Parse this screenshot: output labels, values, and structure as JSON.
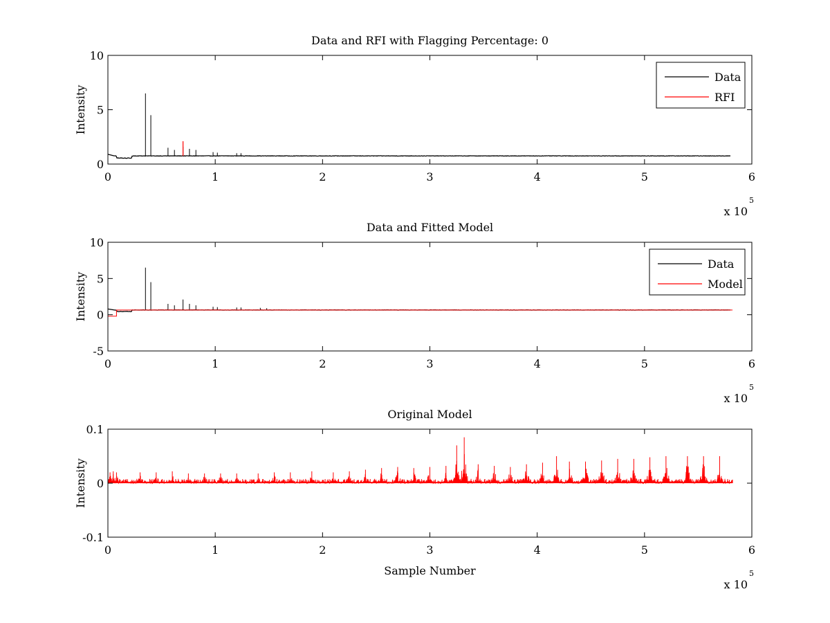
{
  "chart_data": [
    {
      "type": "line",
      "title": "Data and RFI with Flagging Percentage: 0",
      "xlabel": "",
      "ylabel": "Intensity",
      "xlim": [
        0,
        600000
      ],
      "ylim": [
        0,
        10
      ],
      "xticks": [
        0,
        100000,
        200000,
        300000,
        400000,
        500000,
        600000
      ],
      "xtick_labels": [
        "0",
        "1",
        "2",
        "3",
        "4",
        "5",
        "6"
      ],
      "yticks": [
        0,
        5,
        10
      ],
      "ytick_labels": [
        "0",
        "5",
        "10"
      ],
      "x_multiplier": {
        "base": "x 10",
        "exp": "5"
      },
      "grid": false,
      "legend": "top-right",
      "series": [
        {
          "name": "Data",
          "color": "#000000",
          "baseline": 0.75,
          "x": [
            0,
            5000,
            12000,
            20000,
            25000,
            35000,
            40000,
            56000,
            62000,
            70000,
            76000,
            82000,
            98000,
            102000,
            120000,
            124000,
            142000,
            148000,
            580000
          ],
          "y": [
            0.9,
            0.75,
            0.55,
            0.6,
            0.75,
            6.5,
            4.5,
            1.5,
            1.3,
            1.6,
            1.4,
            1.3,
            1.1,
            1.05,
            1.0,
            1.0,
            0.95,
            0.9,
            0.7
          ]
        },
        {
          "name": "RFI",
          "color": "#ff0000",
          "x": [
            70000
          ],
          "y": [
            2.1
          ]
        }
      ]
    },
    {
      "type": "line",
      "title": "Data and Fitted Model",
      "xlabel": "",
      "ylabel": "Intensity",
      "xlim": [
        0,
        600000
      ],
      "ylim": [
        -5,
        10
      ],
      "xticks": [
        0,
        100000,
        200000,
        300000,
        400000,
        500000,
        600000
      ],
      "xtick_labels": [
        "0",
        "1",
        "2",
        "3",
        "4",
        "5",
        "6"
      ],
      "yticks": [
        -5,
        0,
        5,
        10
      ],
      "ytick_labels": [
        "-5",
        "0",
        "5",
        "10"
      ],
      "x_multiplier": {
        "base": "x 10",
        "exp": "5"
      },
      "grid": false,
      "legend": "top-right",
      "series": [
        {
          "name": "Data",
          "color": "#000000",
          "baseline": 0.65,
          "x": [
            0,
            5000,
            20000,
            35000,
            40000,
            56000,
            62000,
            70000,
            76000,
            82000,
            98000,
            102000,
            120000,
            124000,
            142000,
            148000,
            580000
          ],
          "y": [
            0.8,
            0.65,
            0.3,
            6.5,
            4.5,
            1.5,
            1.3,
            2.1,
            1.5,
            1.3,
            1.1,
            1.05,
            1.0,
            1.0,
            0.95,
            0.9,
            0.5
          ]
        },
        {
          "name": "Model",
          "color": "#ff0000",
          "level": 0.65,
          "dip": {
            "x_start": 0,
            "x_end": 8000,
            "y": -0.2
          }
        }
      ]
    },
    {
      "type": "line",
      "title": "Original Model",
      "xlabel": "Sample Number",
      "ylabel": "Intensity",
      "xlim": [
        0,
        600000
      ],
      "ylim": [
        -0.1,
        0.1
      ],
      "xticks": [
        0,
        100000,
        200000,
        300000,
        400000,
        500000,
        600000
      ],
      "xtick_labels": [
        "0",
        "1",
        "2",
        "3",
        "4",
        "5",
        "6"
      ],
      "yticks": [
        -0.1,
        0,
        0.1
      ],
      "ytick_labels": [
        "-0.1",
        "0",
        "0.1"
      ],
      "x_multiplier": {
        "base": "x 10",
        "exp": "5"
      },
      "grid": false,
      "legend": "none",
      "series": [
        {
          "name": "",
          "color": "#ff0000",
          "x": [
            2000,
            5000,
            8000,
            30000,
            45000,
            60000,
            75000,
            90000,
            105000,
            120000,
            140000,
            155000,
            170000,
            190000,
            210000,
            225000,
            240000,
            255000,
            270000,
            285000,
            300000,
            315000,
            325000,
            332000,
            345000,
            360000,
            375000,
            390000,
            405000,
            418000,
            430000,
            445000,
            460000,
            475000,
            490000,
            505000,
            520000,
            540000,
            555000,
            570000
          ],
          "y": [
            0.02,
            0.022,
            0.02,
            0.02,
            0.02,
            0.022,
            0.018,
            0.018,
            0.018,
            0.018,
            0.018,
            0.02,
            0.02,
            0.022,
            0.02,
            0.022,
            0.025,
            0.028,
            0.03,
            0.028,
            0.03,
            0.032,
            0.07,
            0.085,
            0.035,
            0.032,
            0.03,
            0.035,
            0.038,
            0.05,
            0.04,
            0.04,
            0.042,
            0.045,
            0.045,
            0.048,
            0.05,
            0.05,
            0.05,
            0.05
          ]
        }
      ]
    }
  ]
}
